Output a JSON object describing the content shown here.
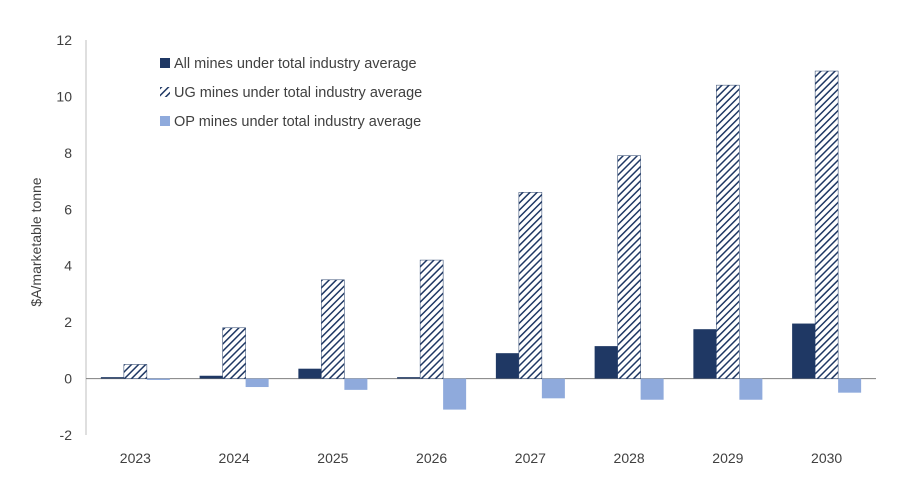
{
  "chart_data": {
    "type": "bar",
    "title": "",
    "xlabel": "",
    "ylabel": "$A/marketable tonne",
    "ylim": [
      -2,
      12
    ],
    "yticks": [
      -2,
      0,
      2,
      4,
      6,
      8,
      10,
      12
    ],
    "categories": [
      "2023",
      "2024",
      "2025",
      "2026",
      "2027",
      "2028",
      "2029",
      "2030"
    ],
    "series": [
      {
        "name": "All mines under total industry average",
        "color": "#1f3864",
        "pattern": "solid",
        "values": [
          0.05,
          0.1,
          0.35,
          0.05,
          0.9,
          1.15,
          1.75,
          1.95
        ]
      },
      {
        "name": "UG mines under total industry average",
        "color": "#1f3864",
        "pattern": "hatch",
        "values": [
          0.5,
          1.8,
          3.5,
          4.2,
          6.6,
          7.9,
          10.4,
          10.9
        ]
      },
      {
        "name": "OP mines under total industry average",
        "color": "#8faadc",
        "pattern": "solid",
        "values": [
          -0.05,
          -0.3,
          -0.4,
          -1.1,
          -0.7,
          -0.75,
          -0.75,
          -0.5
        ]
      }
    ],
    "legend_position": "top-left",
    "grid": false
  }
}
